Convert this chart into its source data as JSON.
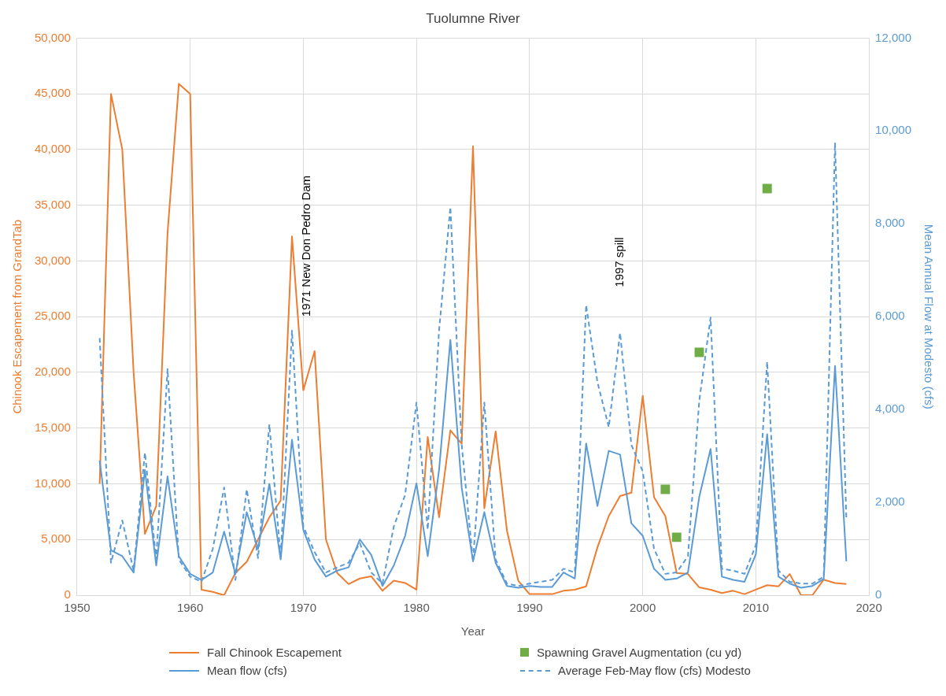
{
  "chart_data": {
    "type": "line",
    "title": "Tuolumne River",
    "xlabel": "Year",
    "ylabel": "Chinook Escapement from GrandTab",
    "y2label": "Mean Annual Flow at Modesto (cfs)",
    "xlim": [
      1950,
      2020
    ],
    "xticks": [
      1950,
      1960,
      1970,
      1980,
      1990,
      2000,
      2010,
      2020
    ],
    "ylim": [
      0,
      50000
    ],
    "yticks": [
      {
        "value": 0,
        "label": "0"
      },
      {
        "value": 5000,
        "label": "5,000"
      },
      {
        "value": 10000,
        "label": "10,000"
      },
      {
        "value": 15000,
        "label": "15,000"
      },
      {
        "value": 20000,
        "label": "20,000"
      },
      {
        "value": 25000,
        "label": "25,000"
      },
      {
        "value": 30000,
        "label": "30,000"
      },
      {
        "value": 35000,
        "label": "35,000"
      },
      {
        "value": 40000,
        "label": "40,000"
      },
      {
        "value": 45000,
        "label": "45,000"
      },
      {
        "value": 50000,
        "label": "50,000"
      }
    ],
    "y2lim": [
      0,
      12000
    ],
    "y2ticks": [
      {
        "value": 0,
        "label": "0"
      },
      {
        "value": 2000,
        "label": "2,000"
      },
      {
        "value": 4000,
        "label": "4,000"
      },
      {
        "value": 6000,
        "label": "6,000"
      },
      {
        "value": 8000,
        "label": "8,000"
      },
      {
        "value": 10000,
        "label": "10,000"
      },
      {
        "value": 12000,
        "label": "12,000"
      }
    ],
    "grid": true,
    "legend": "bottom",
    "x": [
      1952,
      1953,
      1954,
      1955,
      1956,
      1957,
      1958,
      1959,
      1960,
      1961,
      1962,
      1963,
      1964,
      1965,
      1966,
      1967,
      1968,
      1969,
      1970,
      1971,
      1972,
      1973,
      1974,
      1975,
      1976,
      1977,
      1978,
      1979,
      1980,
      1981,
      1982,
      1983,
      1984,
      1985,
      1986,
      1987,
      1988,
      1989,
      1990,
      1991,
      1992,
      1993,
      1994,
      1995,
      1996,
      1997,
      1998,
      1999,
      2000,
      2001,
      2002,
      2003,
      2004,
      2005,
      2006,
      2007,
      2008,
      2009,
      2010,
      2011,
      2012,
      2013,
      2014,
      2015,
      2016,
      2017,
      2018
    ],
    "series": [
      {
        "name": "Fall Chinook Escapement",
        "marker": "none",
        "line_style": "solid",
        "color": "#ed7d31",
        "values": [
          10000,
          45000,
          40000,
          20000,
          5500,
          8000,
          32500,
          45900,
          45000,
          500,
          300,
          0,
          2000,
          3000,
          5000,
          7000,
          8500,
          32200,
          18400,
          21900,
          5000,
          2000,
          1000,
          1500,
          1700,
          400,
          1300,
          1100,
          500,
          14200,
          7000,
          14800,
          13600,
          40300,
          7800,
          14700,
          5800,
          1300,
          100,
          100,
          100,
          400,
          500,
          800,
          4300,
          7100,
          8900,
          9200,
          17900,
          8800,
          7100,
          2000,
          1900,
          700,
          500,
          200,
          400,
          100,
          500,
          900,
          800,
          1900,
          0,
          0,
          1400,
          1100,
          1000
        ]
      },
      {
        "name": "Spawning Gravel Augmentation (cu yd)",
        "type": "scatter",
        "marker": "square",
        "color": "#70ad47",
        "x": [
          2002,
          2003,
          2005,
          2011
        ],
        "values": [
          9500,
          5200,
          21800,
          36500
        ]
      },
      {
        "name": "Mean flow (cfs)",
        "axis": "y2",
        "marker": "none",
        "line_style": "solid",
        "color": "#5b9bd5",
        "values": [
          2900,
          970,
          840,
          490,
          2700,
          640,
          2560,
          840,
          460,
          330,
          490,
          1370,
          460,
          1790,
          1000,
          2400,
          770,
          3350,
          1410,
          770,
          400,
          530,
          600,
          1200,
          870,
          200,
          640,
          1280,
          2410,
          840,
          2700,
          5500,
          2320,
          730,
          1790,
          700,
          200,
          160,
          200,
          180,
          180,
          490,
          360,
          3270,
          1920,
          3110,
          3030,
          1550,
          1280,
          570,
          330,
          360,
          490,
          2120,
          3150,
          400,
          330,
          290,
          880,
          3470,
          400,
          250,
          160,
          200,
          350,
          4940,
          730
        ]
      },
      {
        "name": "Average Feb-May flow (cfs) Modesto",
        "axis": "y2",
        "marker": "none",
        "line_style": "dashed",
        "color": "#5b9bd5",
        "values": [
          5540,
          700,
          1610,
          530,
          3070,
          770,
          4870,
          770,
          400,
          290,
          1000,
          2320,
          330,
          2280,
          800,
          3680,
          800,
          5700,
          1480,
          930,
          490,
          600,
          700,
          1120,
          490,
          250,
          1480,
          2160,
          4150,
          1410,
          5700,
          8360,
          3240,
          730,
          4150,
          770,
          250,
          200,
          250,
          290,
          330,
          570,
          490,
          6250,
          4590,
          3620,
          5650,
          3240,
          2670,
          1000,
          460,
          490,
          840,
          4190,
          5980,
          570,
          530,
          460,
          1080,
          5030,
          530,
          290,
          250,
          250,
          400,
          9750,
          1650
        ]
      }
    ],
    "annotations": [
      "1971 New Don Pedro Dam",
      "1997 spill"
    ]
  }
}
